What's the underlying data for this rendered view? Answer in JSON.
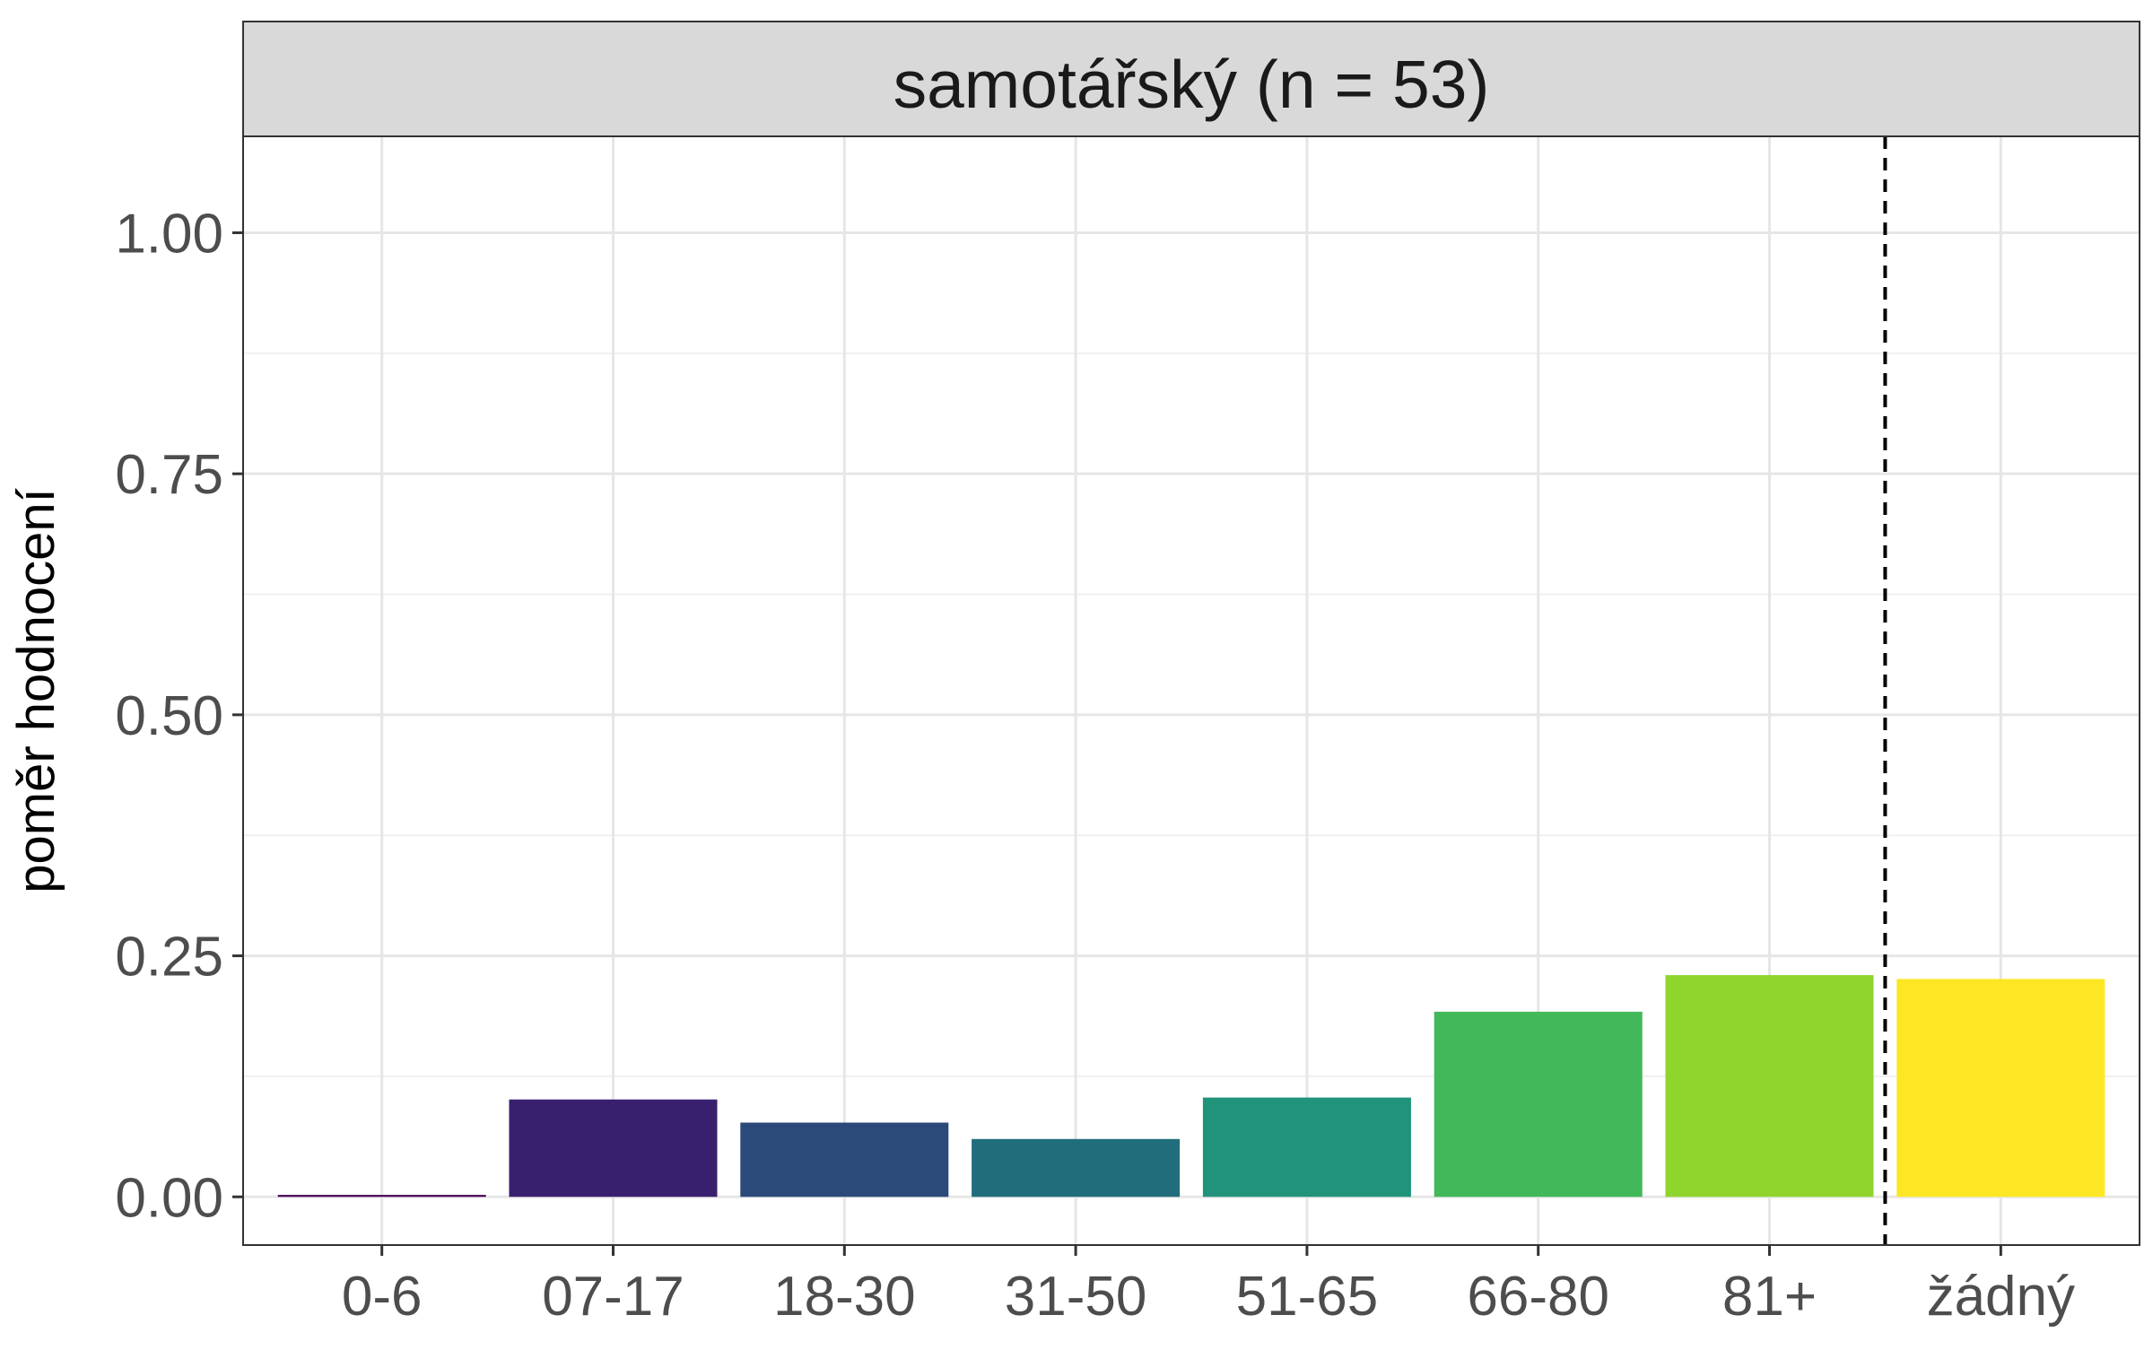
{
  "chart_data": {
    "type": "bar",
    "facet_title": "samotářský (n = 53)",
    "categories": [
      "0-6",
      "07-17",
      "18-30",
      "31-50",
      "51-65",
      "66-80",
      "81+",
      "žádný"
    ],
    "values": [
      0.002,
      0.101,
      0.077,
      0.06,
      0.103,
      0.192,
      0.23,
      0.226
    ],
    "colors": [
      "#440154",
      "#39206f",
      "#2b4a7a",
      "#226d7b",
      "#20937a",
      "#42b85a",
      "#8fd52e",
      "#fde725"
    ],
    "xlabel": "",
    "ylabel": "poměr hodnocení",
    "ylim": [
      -0.05,
      1.1
    ],
    "yticks": [
      0.0,
      0.25,
      0.5,
      0.75,
      1.0
    ],
    "ytick_labels": [
      "0.00",
      "0.25",
      "0.50",
      "0.75",
      "1.00"
    ],
    "yminor": [
      0.125,
      0.375,
      0.625,
      0.875,
      1.1
    ],
    "reference_line": {
      "between": [
        "81+",
        "žádný"
      ],
      "style": "dashed"
    },
    "grid": true,
    "legend": "none"
  }
}
